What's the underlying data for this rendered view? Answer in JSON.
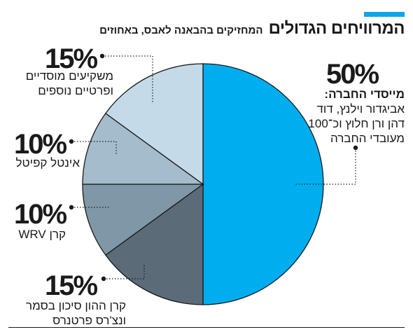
{
  "header": {
    "title": "המרוויחים הגדולים",
    "subtitle": "המחזיקים בהבאנה לאבס, באחוזים",
    "accent_color": "#0ea5e9"
  },
  "chart_data": {
    "type": "pie",
    "title": "המרוויחים הגדולים",
    "subtitle": "המחזיקים בהבאנה לאבס, באחוזים",
    "start_angle_deg": 0,
    "direction": "clockwise",
    "slices": [
      {
        "value": 50,
        "pct_text": "50%",
        "label_title": "מייסדי החברה:",
        "label_lines": [
          "אביגדור וילנץ, דוד",
          "דהן ורן חלוץ וכ־100",
          "מעובדי החברה"
        ],
        "color": "#00aeef"
      },
      {
        "value": 15,
        "pct_text": "15%",
        "label_title": "",
        "label_lines": [
          "קרן ההון סיכון בסמר",
          "ונצ'רס פרטנרס"
        ],
        "color": "#5b6b78"
      },
      {
        "value": 10,
        "pct_text": "10%",
        "label_title": "",
        "label_lines": [
          "קרן WRV"
        ],
        "color": "#7f97a6"
      },
      {
        "value": 10,
        "pct_text": "10%",
        "label_title": "",
        "label_lines": [
          "אינטל קפיטל"
        ],
        "color": "#a4bccb"
      },
      {
        "value": 15,
        "pct_text": "15%",
        "label_title": "",
        "label_lines": [
          "משקיעים מוסדיים",
          "ופרטיים נוספים"
        ],
        "color": "#c4dae8"
      }
    ]
  }
}
